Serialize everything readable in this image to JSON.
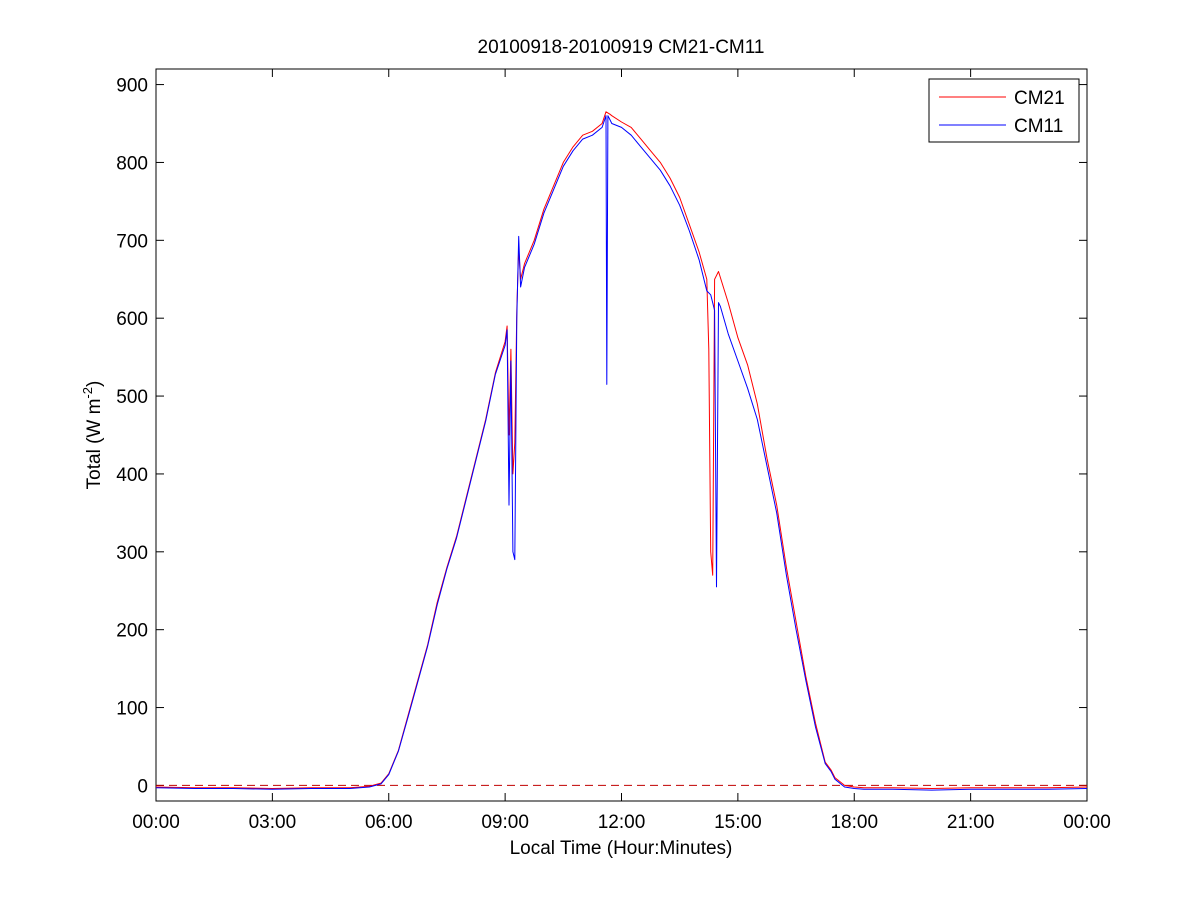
{
  "chart_data": {
    "type": "line",
    "title": "20100918-20100919 CM21-CM11",
    "xlabel": "Local Time (Hour:Minutes)",
    "ylabel": {
      "prefix": "Total (W m",
      "superscript": "-2",
      "suffix": ")"
    },
    "x_unit": "hours",
    "xlim": [
      0,
      24
    ],
    "ylim": [
      -20,
      920
    ],
    "x_ticks": [
      0,
      3,
      6,
      9,
      12,
      15,
      18,
      21,
      24
    ],
    "x_tick_labels": [
      "00:00",
      "03:00",
      "06:00",
      "09:00",
      "12:00",
      "15:00",
      "18:00",
      "21:00",
      "00:00"
    ],
    "y_ticks": [
      0,
      100,
      200,
      300,
      400,
      500,
      600,
      700,
      800,
      900
    ],
    "y_tick_labels": [
      "0",
      "100",
      "200",
      "300",
      "400",
      "500",
      "600",
      "700",
      "800",
      "900"
    ],
    "grid": false,
    "legend_position": "top-right",
    "reference_line": {
      "y": 0,
      "color": "#c00000",
      "style": "dashed"
    },
    "series": [
      {
        "name": "CM21",
        "color": "#ff0000",
        "x": [
          0,
          1,
          2,
          3,
          4,
          5,
          5.5,
          5.8,
          6.0,
          6.25,
          6.5,
          6.75,
          7.0,
          7.25,
          7.5,
          7.75,
          8.0,
          8.25,
          8.5,
          8.75,
          9.0,
          9.05,
          9.1,
          9.15,
          9.2,
          9.25,
          9.3,
          9.35,
          9.4,
          9.5,
          9.75,
          10.0,
          10.25,
          10.5,
          10.75,
          11.0,
          11.25,
          11.5,
          11.6,
          11.7,
          11.75,
          12.0,
          12.25,
          12.5,
          12.75,
          13.0,
          13.25,
          13.5,
          13.75,
          14.0,
          14.2,
          14.25,
          14.3,
          14.35,
          14.4,
          14.5,
          14.75,
          15.0,
          15.25,
          15.5,
          15.75,
          16.0,
          16.25,
          16.5,
          16.75,
          17.0,
          17.25,
          17.4,
          17.5,
          17.75,
          18.0,
          18.25,
          19,
          20,
          21,
          22,
          23,
          24
        ],
        "y": [
          -2,
          -3,
          -3,
          -4,
          -3,
          -3,
          -1,
          3,
          15,
          45,
          90,
          135,
          180,
          235,
          280,
          320,
          370,
          420,
          470,
          530,
          570,
          590,
          450,
          560,
          400,
          440,
          610,
          690,
          650,
          670,
          700,
          740,
          770,
          800,
          820,
          835,
          840,
          850,
          865,
          862,
          860,
          852,
          845,
          830,
          815,
          800,
          780,
          755,
          720,
          685,
          650,
          560,
          300,
          270,
          650,
          660,
          620,
          575,
          540,
          490,
          420,
          360,
          280,
          210,
          140,
          80,
          30,
          20,
          10,
          0,
          -2,
          -3,
          -3,
          -4,
          -3,
          -3,
          -3,
          -2
        ]
      },
      {
        "name": "CM11",
        "color": "#0000ff",
        "x": [
          0,
          1,
          2,
          3,
          4,
          5,
          5.5,
          5.8,
          6.0,
          6.25,
          6.5,
          6.75,
          7.0,
          7.25,
          7.5,
          7.75,
          8.0,
          8.25,
          8.5,
          8.75,
          9.0,
          9.05,
          9.1,
          9.15,
          9.2,
          9.25,
          9.3,
          9.35,
          9.4,
          9.5,
          9.75,
          10.0,
          10.25,
          10.5,
          10.75,
          11.0,
          11.25,
          11.5,
          11.6,
          11.62,
          11.65,
          11.7,
          11.75,
          12.0,
          12.25,
          12.5,
          12.75,
          13.0,
          13.25,
          13.5,
          13.75,
          14.0,
          14.2,
          14.3,
          14.4,
          14.45,
          14.5,
          14.55,
          14.75,
          15.0,
          15.25,
          15.5,
          15.75,
          16.0,
          16.25,
          16.5,
          16.75,
          17.0,
          17.25,
          17.4,
          17.5,
          17.75,
          18.0,
          18.25,
          19,
          20,
          21,
          22,
          23,
          24
        ],
        "y": [
          -3,
          -4,
          -4,
          -5,
          -4,
          -4,
          -2,
          2,
          14,
          44,
          88,
          133,
          178,
          232,
          278,
          318,
          368,
          418,
          468,
          528,
          565,
          585,
          360,
          545,
          300,
          290,
          600,
          705,
          640,
          665,
          695,
          735,
          765,
          795,
          815,
          830,
          835,
          845,
          860,
          515,
          860,
          855,
          850,
          845,
          835,
          820,
          805,
          790,
          770,
          745,
          712,
          675,
          635,
          630,
          610,
          255,
          620,
          615,
          580,
          545,
          510,
          470,
          410,
          350,
          270,
          200,
          135,
          75,
          28,
          18,
          8,
          -2,
          -4,
          -5,
          -5,
          -6,
          -5,
          -5,
          -5,
          -4
        ]
      }
    ]
  }
}
